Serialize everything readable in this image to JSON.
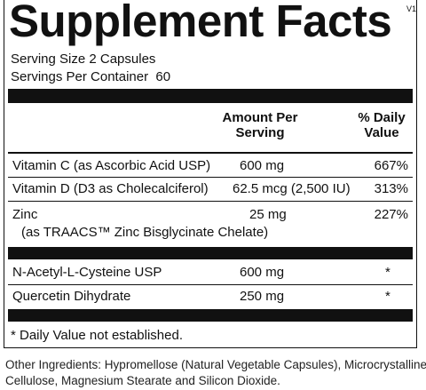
{
  "header": {
    "title": "Supplement Facts",
    "version": "V1"
  },
  "serving": [
    "Serving Size 2 Capsules",
    "Servings Per Container  60"
  ],
  "columns": {
    "amount": [
      "Amount Per",
      "Serving"
    ],
    "daily_value": [
      "% Daily",
      "Value"
    ]
  },
  "rows": [
    {
      "name": "Vitamin C (as Ascorbic Acid USP)",
      "amount": "600 mg",
      "daily_value": "667%"
    },
    {
      "name": "Vitamin D (D3 as Cholecalciferol)",
      "amount": "62.5 mcg (2,500 IU)",
      "daily_value": "313%"
    },
    {
      "name": "Zinc",
      "note": "(as TRAACS™ Zinc Bisglycinate Chelate)",
      "amount": "25 mg",
      "daily_value": "227%"
    },
    {
      "name": "N-Acetyl-L-Cysteine USP",
      "amount": "600 mg",
      "daily_value": "*"
    },
    {
      "name": "Quercetin Dihydrate",
      "amount": "250 mg",
      "daily_value": "*"
    }
  ],
  "footnote": "* Daily Value not established.",
  "other_ingredients": [
    "Other Ingredients: Hypromellose (Natural Vegetable Capsules), Microcrystalline",
    "Cellulose, Magnesium Stearate and Silicon Dioxide."
  ]
}
